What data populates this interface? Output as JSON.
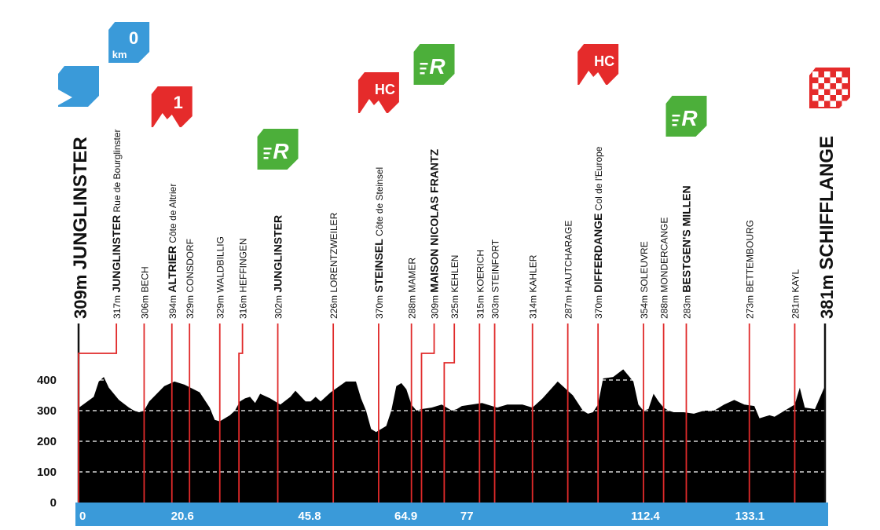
{
  "chart_data": {
    "type": "area",
    "title": "",
    "xlabel": "",
    "ylabel": "",
    "ylim": [
      0,
      450
    ],
    "xlim": [
      0,
      148
    ],
    "yticks": [
      0,
      100,
      200,
      300,
      400
    ],
    "km_markers": [
      "0",
      "20.6",
      "45.8",
      "64.9",
      "77",
      "112.4",
      "133.1"
    ],
    "km_marker_values": [
      0,
      20.6,
      45.8,
      64.9,
      77,
      112.4,
      133.1
    ],
    "start_badge": {
      "value": "0",
      "unit": "km"
    },
    "colors": {
      "profile": "#000000",
      "km_bar": "#3a9ad9",
      "lines": "#e02a2a",
      "climb": "#e52b2b",
      "sprint": "#4caf3a",
      "start": "#3a9ad9"
    },
    "profile_x": [
      0,
      3,
      4,
      5,
      6,
      8,
      10,
      11,
      12,
      13,
      14,
      17,
      19,
      21,
      24,
      26,
      27,
      28,
      30,
      31,
      32,
      33,
      34,
      35,
      36,
      38,
      40,
      42,
      43,
      45,
      46,
      47,
      48,
      50,
      53,
      55,
      56,
      57,
      58,
      59,
      60,
      61,
      62,
      63,
      64,
      65,
      66,
      67,
      68,
      70,
      72,
      74,
      75,
      76,
      80,
      83,
      85,
      88,
      90,
      92,
      95,
      98,
      100,
      101,
      102,
      103,
      104,
      106,
      108,
      110,
      111,
      112,
      113,
      114,
      115,
      116,
      117,
      118,
      120,
      122,
      124,
      126,
      128,
      130,
      132,
      134,
      135,
      136,
      137,
      138,
      140,
      142,
      143,
      144,
      146,
      148
    ],
    "profile_y": [
      309,
      345,
      395,
      410,
      375,
      335,
      310,
      300,
      295,
      300,
      330,
      380,
      395,
      385,
      360,
      310,
      270,
      265,
      285,
      300,
      330,
      340,
      345,
      325,
      355,
      340,
      320,
      345,
      365,
      330,
      330,
      345,
      330,
      360,
      395,
      395,
      340,
      300,
      240,
      230,
      240,
      250,
      300,
      380,
      390,
      370,
      320,
      300,
      305,
      310,
      320,
      300,
      305,
      315,
      325,
      310,
      320,
      320,
      310,
      340,
      395,
      350,
      300,
      290,
      295,
      320,
      405,
      410,
      435,
      395,
      320,
      300,
      305,
      355,
      330,
      310,
      300,
      295,
      295,
      290,
      300,
      300,
      320,
      335,
      320,
      315,
      275,
      280,
      285,
      280,
      300,
      320,
      375,
      310,
      305,
      381
    ],
    "labels": [
      {
        "km": 0,
        "alt": "309m",
        "name": "JUNGLINSTER",
        "sub": "",
        "size": "big",
        "badge": "start"
      },
      {
        "km": 7.5,
        "alt": "317m",
        "name": "JUNGLINSTER",
        "sub": "Rue de Bourglinster",
        "size": "bold",
        "badge": "km0"
      },
      {
        "km": 13,
        "alt": "306m",
        "name": "BECH",
        "sub": "",
        "size": "normal",
        "badge": ""
      },
      {
        "km": 18.5,
        "alt": "394m",
        "name": "ALTRIER",
        "sub": "Côte de Altrier",
        "size": "bold",
        "badge": "1"
      },
      {
        "km": 22,
        "alt": "329m",
        "name": "CONSDORF",
        "sub": "",
        "size": "normal",
        "badge": ""
      },
      {
        "km": 28,
        "alt": "329m",
        "name": "WALDBILLIG",
        "sub": "",
        "size": "normal",
        "badge": ""
      },
      {
        "km": 32.5,
        "alt": "316m",
        "name": "HEFFINGEN",
        "sub": "",
        "size": "normal",
        "badge": ""
      },
      {
        "km": 39.5,
        "alt": "302m",
        "name": "JUNGLINSTER",
        "sub": "",
        "size": "bold",
        "badge": "R"
      },
      {
        "km": 50.5,
        "alt": "226m",
        "name": "LORENTZWEILER",
        "sub": "",
        "size": "normal",
        "badge": ""
      },
      {
        "km": 59.5,
        "alt": "370m",
        "name": "STEINSEL",
        "sub": "Côte de Steinsel",
        "size": "bold",
        "badge": "HC"
      },
      {
        "km": 66,
        "alt": "288m",
        "name": "MAMER",
        "sub": "",
        "size": "normal",
        "badge": ""
      },
      {
        "km": 70.5,
        "alt": "309m",
        "name": "MAISON NICOLAS FRANTZ",
        "sub": "",
        "size": "bold",
        "badge": "R"
      },
      {
        "km": 74.5,
        "alt": "325m",
        "name": "KEHLEN",
        "sub": "",
        "size": "normal",
        "badge": ""
      },
      {
        "km": 79.5,
        "alt": "315m",
        "name": "KOERICH",
        "sub": "",
        "size": "normal",
        "badge": ""
      },
      {
        "km": 82.5,
        "alt": "303m",
        "name": "STEINFORT",
        "sub": "",
        "size": "normal",
        "badge": ""
      },
      {
        "km": 90,
        "alt": "314m",
        "name": "KAHLER",
        "sub": "",
        "size": "normal",
        "badge": ""
      },
      {
        "km": 97,
        "alt": "287m",
        "name": "HAUTCHARAGE",
        "sub": "",
        "size": "normal",
        "badge": ""
      },
      {
        "km": 103,
        "alt": "370m",
        "name": "DIFFERDANGE",
        "sub": "Col de l'Europe",
        "size": "bold",
        "badge": "HC"
      },
      {
        "km": 112,
        "alt": "354m",
        "name": "SOLEUVRE",
        "sub": "",
        "size": "normal",
        "badge": ""
      },
      {
        "km": 116,
        "alt": "288m",
        "name": "MONDERCANGE",
        "sub": "",
        "size": "normal",
        "badge": ""
      },
      {
        "km": 120.5,
        "alt": "283m",
        "name": "BESTGEN'S MILLEN",
        "sub": "",
        "size": "bold",
        "badge": "R"
      },
      {
        "km": 133,
        "alt": "273m",
        "name": "BETTEMBOURG",
        "sub": "",
        "size": "normal",
        "badge": ""
      },
      {
        "km": 142,
        "alt": "281m",
        "name": "KAYL",
        "sub": "",
        "size": "normal",
        "badge": ""
      },
      {
        "km": 148,
        "alt": "381m",
        "name": "SCHIFFLANGE",
        "sub": "",
        "size": "big",
        "badge": "finish"
      }
    ]
  }
}
